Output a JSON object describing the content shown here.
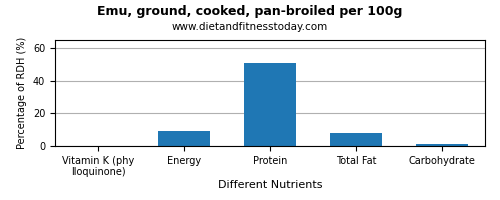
{
  "chart_data": {
    "type": "bar",
    "title": "Emu, ground, cooked, pan-broiled per 100g",
    "subtitle": "www.dietandfitnesstoday.com",
    "xlabel": "Different Nutrients",
    "ylabel": "Percentage of RDH (%)",
    "categories": [
      "Vitamin K (phylloquinone)",
      "Energy",
      "Protein",
      "Total Fat",
      "Carbohydrate"
    ],
    "values": [
      0.2,
      9.0,
      51.0,
      8.0,
      1.0
    ],
    "ylim": [
      0,
      65
    ],
    "yticks": [
      0,
      20,
      40,
      60
    ],
    "grid": true
  }
}
